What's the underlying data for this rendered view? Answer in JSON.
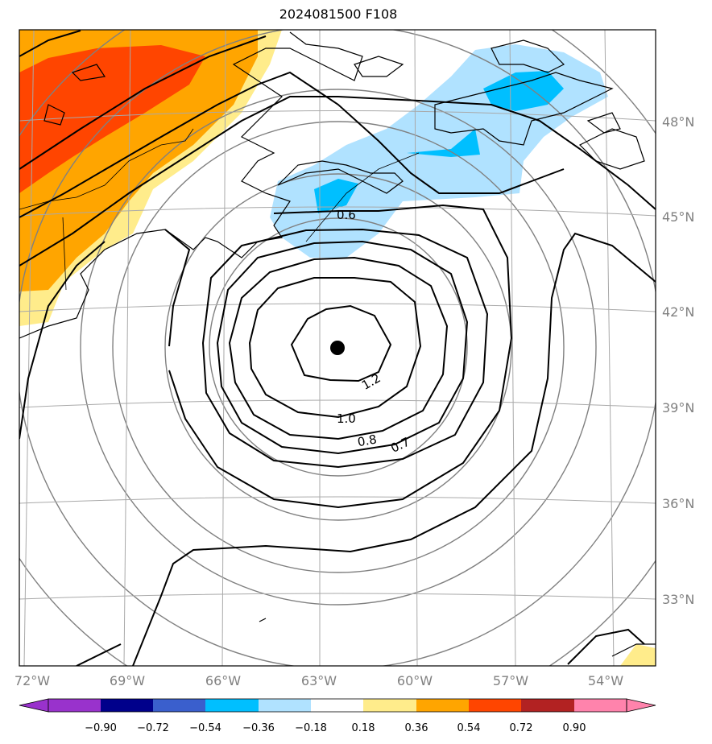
{
  "title": "2024081500 F108",
  "map": {
    "lat_labels": [
      "48°N",
      "45°N",
      "42°N",
      "39°N",
      "36°N",
      "33°N"
    ],
    "lon_labels": [
      "72°W",
      "69°W",
      "66°W",
      "63°W",
      "60°W",
      "57°W",
      "54°W"
    ],
    "contour_labels": [
      "0.6",
      "1.2",
      "1.0",
      "0.8",
      "0.7"
    ],
    "center_marker": "storm-center-dot"
  },
  "colorbar": {
    "ticks": [
      "−0.90",
      "−0.72",
      "−0.54",
      "−0.36",
      "−0.18",
      "0.18",
      "0.36",
      "0.54",
      "0.72",
      "0.90"
    ],
    "colors": [
      "#9932CC",
      "#00008B",
      "#3A5FCD",
      "#00BFFF",
      "#B0E2FF",
      "#FFFFFF",
      "#FFEC8B",
      "#FFA500",
      "#FF4500",
      "#B22222",
      "#FF83AC"
    ]
  },
  "colors": {
    "grid": "#A9A9A9",
    "range_rings": "#808080",
    "contours": "#000000"
  }
}
